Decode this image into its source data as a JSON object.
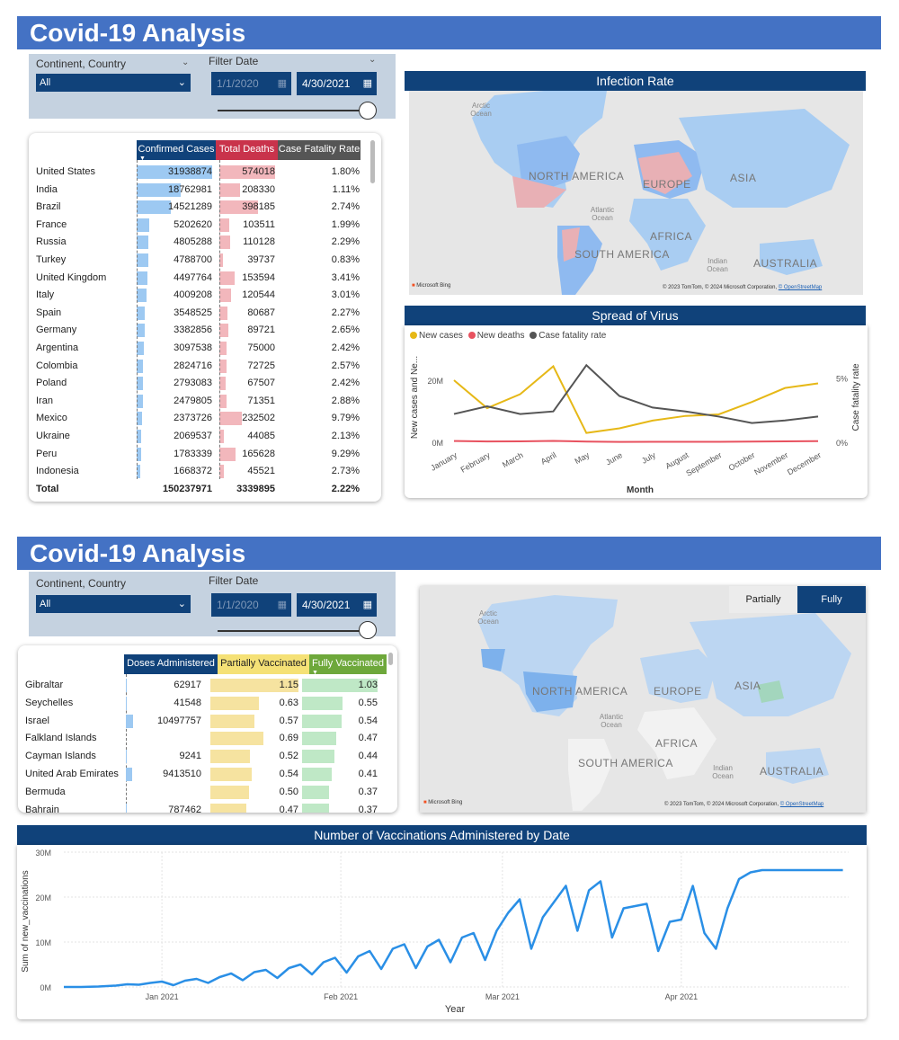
{
  "page1": {
    "title": "Covid-19 Analysis",
    "filters": {
      "continent_label": "Continent, Country",
      "continent_value": "All",
      "date_label": "Filter Date",
      "date_start": "1/1/2020",
      "date_end": "4/30/2021"
    },
    "table": {
      "headers": [
        "Confirmed Cases",
        "Total Deaths",
        "Case Fatality Rate"
      ],
      "rows": [
        {
          "country": "United States",
          "cases": "31938874",
          "deaths": "574018",
          "rate": "1.80%",
          "cases_n": 31938874,
          "deaths_n": 574018
        },
        {
          "country": "India",
          "cases": "18762981",
          "deaths": "208330",
          "rate": "1.11%",
          "cases_n": 18762981,
          "deaths_n": 208330
        },
        {
          "country": "Brazil",
          "cases": "14521289",
          "deaths": "398185",
          "rate": "2.74%",
          "cases_n": 14521289,
          "deaths_n": 398185
        },
        {
          "country": "France",
          "cases": "5202620",
          "deaths": "103511",
          "rate": "1.99%",
          "cases_n": 5202620,
          "deaths_n": 103511
        },
        {
          "country": "Russia",
          "cases": "4805288",
          "deaths": "110128",
          "rate": "2.29%",
          "cases_n": 4805288,
          "deaths_n": 110128
        },
        {
          "country": "Turkey",
          "cases": "4788700",
          "deaths": "39737",
          "rate": "0.83%",
          "cases_n": 4788700,
          "deaths_n": 39737
        },
        {
          "country": "United Kingdom",
          "cases": "4497764",
          "deaths": "153594",
          "rate": "3.41%",
          "cases_n": 4497764,
          "deaths_n": 153594
        },
        {
          "country": "Italy",
          "cases": "4009208",
          "deaths": "120544",
          "rate": "3.01%",
          "cases_n": 4009208,
          "deaths_n": 120544
        },
        {
          "country": "Spain",
          "cases": "3548525",
          "deaths": "80687",
          "rate": "2.27%",
          "cases_n": 3548525,
          "deaths_n": 80687
        },
        {
          "country": "Germany",
          "cases": "3382856",
          "deaths": "89721",
          "rate": "2.65%",
          "cases_n": 3382856,
          "deaths_n": 89721
        },
        {
          "country": "Argentina",
          "cases": "3097538",
          "deaths": "75000",
          "rate": "2.42%",
          "cases_n": 3097538,
          "deaths_n": 75000
        },
        {
          "country": "Colombia",
          "cases": "2824716",
          "deaths": "72725",
          "rate": "2.57%",
          "cases_n": 2824716,
          "deaths_n": 72725
        },
        {
          "country": "Poland",
          "cases": "2793083",
          "deaths": "67507",
          "rate": "2.42%",
          "cases_n": 2793083,
          "deaths_n": 67507
        },
        {
          "country": "Iran",
          "cases": "2479805",
          "deaths": "71351",
          "rate": "2.88%",
          "cases_n": 2479805,
          "deaths_n": 71351
        },
        {
          "country": "Mexico",
          "cases": "2373726",
          "deaths": "232502",
          "rate": "9.79%",
          "cases_n": 2373726,
          "deaths_n": 232502
        },
        {
          "country": "Ukraine",
          "cases": "2069537",
          "deaths": "44085",
          "rate": "2.13%",
          "cases_n": 2069537,
          "deaths_n": 44085
        },
        {
          "country": "Peru",
          "cases": "1783339",
          "deaths": "165628",
          "rate": "9.29%",
          "cases_n": 1783339,
          "deaths_n": 165628
        },
        {
          "country": "Indonesia",
          "cases": "1668372",
          "deaths": "45521",
          "rate": "2.73%",
          "cases_n": 1668372,
          "deaths_n": 45521
        }
      ],
      "total": {
        "label": "Total",
        "cases": "150237971",
        "deaths": "3339895",
        "rate": "2.22%"
      }
    },
    "infection_map": {
      "title": "Infection Rate",
      "labels": {
        "north_america": "NORTH AMERICA",
        "south_america": "SOUTH AMERICA",
        "europe": "EUROPE",
        "asia": "ASIA",
        "africa": "AFRICA",
        "australia": "AUSTRALIA"
      },
      "oceans": {
        "arctic": "Arctic Ocean",
        "atlantic": "Atlantic Ocean",
        "indian": "Indian Ocean"
      },
      "bing": "Microsoft Bing",
      "attribution": "© 2023 TomTom, © 2024 Microsoft Corporation,",
      "osm": "© OpenStreetMap"
    },
    "spread_chart": {
      "title": "Spread of Virus"
    }
  },
  "page2": {
    "title": "Covid-19 Analysis",
    "filters": {
      "continent_label": "Continent, Country",
      "continent_value": "All",
      "date_label": "Filter Date",
      "date_start": "1/1/2020",
      "date_end": "4/30/2021"
    },
    "table": {
      "headers": [
        "Doses Administered",
        "Partially Vaccinated",
        "Fully Vaccinated"
      ],
      "rows": [
        {
          "country": "Gibraltar",
          "doses": "62917",
          "partial": "1.15",
          "full": "1.03",
          "doses_n": 62917,
          "partial_n": 1.15,
          "full_n": 1.03
        },
        {
          "country": "Seychelles",
          "doses": "41548",
          "partial": "0.63",
          "full": "0.55",
          "doses_n": 41548,
          "partial_n": 0.63,
          "full_n": 0.55
        },
        {
          "country": "Israel",
          "doses": "10497757",
          "partial": "0.57",
          "full": "0.54",
          "doses_n": 10497757,
          "partial_n": 0.57,
          "full_n": 0.54
        },
        {
          "country": "Falkland Islands",
          "doses": "",
          "partial": "0.69",
          "full": "0.47",
          "doses_n": 0,
          "partial_n": 0.69,
          "full_n": 0.47
        },
        {
          "country": "Cayman Islands",
          "doses": "9241",
          "partial": "0.52",
          "full": "0.44",
          "doses_n": 9241,
          "partial_n": 0.52,
          "full_n": 0.44
        },
        {
          "country": "United Arab Emirates",
          "doses": "9413510",
          "partial": "0.54",
          "full": "0.41",
          "doses_n": 9413510,
          "partial_n": 0.54,
          "full_n": 0.41
        },
        {
          "country": "Bermuda",
          "doses": "",
          "partial": "0.50",
          "full": "0.37",
          "doses_n": 0,
          "partial_n": 0.5,
          "full_n": 0.37
        },
        {
          "country": "Bahrain",
          "doses": "787462",
          "partial": "0.47",
          "full": "0.37",
          "doses_n": 787462,
          "partial_n": 0.47,
          "full_n": 0.37
        }
      ]
    },
    "vacc_map": {
      "toggle_partial": "Partially",
      "toggle_full": "Fully",
      "labels": {
        "north_america": "NORTH AMERICA",
        "south_america": "SOUTH AMERICA",
        "europe": "EUROPE",
        "asia": "ASIA",
        "africa": "AFRICA",
        "australia": "AUSTRALIA"
      },
      "oceans": {
        "arctic": "Arctic Ocean",
        "atlantic": "Atlantic Ocean",
        "indian": "Indian Ocean"
      },
      "bing": "Microsoft Bing",
      "attribution": "© 2023 TomTom, © 2024 Microsoft Corporation,",
      "osm": "© OpenStreetMap"
    },
    "vacc_chart": {
      "title": "Number of Vaccinations Administered by Date"
    }
  },
  "colors": {
    "banner": "#4472c4",
    "navy": "#10427a",
    "cases": "#9dc9f2",
    "deaths": "#f2b7bc",
    "deaths_header": "#c9334b",
    "rate_header": "#555555",
    "partial_header": "#f5e176",
    "full_header": "#6ea83b"
  },
  "chart_data": [
    {
      "type": "line",
      "title": "Spread of Virus",
      "x": [
        "January",
        "February",
        "March",
        "April",
        "May",
        "June",
        "July",
        "August",
        "September",
        "October",
        "November",
        "December"
      ],
      "xlabel": "Month",
      "ylabel": "New cases and Ne...",
      "y2label": "Case fatality rate",
      "y_ticks": [
        "0M",
        "20M"
      ],
      "y2_ticks": [
        "0%",
        "5%"
      ],
      "ylim": [
        0,
        29000000
      ],
      "y2lim": [
        0,
        7
      ],
      "legend": "top-left",
      "series": [
        {
          "name": "New cases",
          "color": "#e6b817",
          "axis": "left",
          "values": [
            20000000,
            11000000,
            15500000,
            24500000,
            3000000,
            4500000,
            7000000,
            8500000,
            9000000,
            13000000,
            17500000,
            19000000
          ]
        },
        {
          "name": "New deaths",
          "color": "#e8525f",
          "axis": "left",
          "values": [
            400000,
            250000,
            300000,
            450000,
            200000,
            120000,
            150000,
            150000,
            140000,
            200000,
            300000,
            350000
          ]
        },
        {
          "name": "Case fatality rate",
          "color": "#555555",
          "axis": "right",
          "values": [
            2.2,
            2.8,
            2.2,
            2.4,
            6.0,
            3.6,
            2.7,
            2.4,
            2.0,
            1.5,
            1.7,
            2.0
          ]
        }
      ]
    },
    {
      "type": "line",
      "title": "Number of Vaccinations Administered by Date",
      "xlabel": "Year",
      "ylabel": "Sum of new_vaccinations",
      "x_ticks": [
        "Jan 2021",
        "Feb 2021",
        "Mar 2021",
        "Apr 2021"
      ],
      "y_ticks": [
        "0M",
        "10M",
        "20M",
        "30M"
      ],
      "ylim": [
        0,
        30000000
      ],
      "x_range": [
        "2020-12-15",
        "2021-04-30"
      ],
      "grid": true,
      "series": [
        {
          "name": "",
          "color": "#2a8fe6",
          "x": [
            "2020-12-15",
            "2020-12-18",
            "2020-12-21",
            "2020-12-24",
            "2020-12-26",
            "2020-12-28",
            "2020-12-30",
            "2021-01-01",
            "2021-01-03",
            "2021-01-05",
            "2021-01-07",
            "2021-01-09",
            "2021-01-11",
            "2021-01-13",
            "2021-01-15",
            "2021-01-17",
            "2021-01-19",
            "2021-01-21",
            "2021-01-23",
            "2021-01-25",
            "2021-01-27",
            "2021-01-29",
            "2021-01-31",
            "2021-02-02",
            "2021-02-04",
            "2021-02-06",
            "2021-02-08",
            "2021-02-10",
            "2021-02-12",
            "2021-02-14",
            "2021-02-16",
            "2021-02-18",
            "2021-02-20",
            "2021-02-22",
            "2021-02-24",
            "2021-02-26",
            "2021-02-28",
            "2021-03-02",
            "2021-03-04",
            "2021-03-06",
            "2021-03-08",
            "2021-03-10",
            "2021-03-12",
            "2021-03-14",
            "2021-03-16",
            "2021-03-18",
            "2021-03-20",
            "2021-03-22",
            "2021-03-24",
            "2021-03-26",
            "2021-03-28",
            "2021-03-30",
            "2021-04-01",
            "2021-04-03",
            "2021-04-05",
            "2021-04-07",
            "2021-04-09",
            "2021-04-11",
            "2021-04-13",
            "2021-04-15",
            "2021-04-17",
            "2021-04-19",
            "2021-04-21",
            "2021-04-23",
            "2021-04-25",
            "2021-04-27",
            "2021-04-29"
          ],
          "values": [
            0,
            0,
            100000,
            300000,
            600000,
            500000,
            900000,
            1200000,
            400000,
            1400000,
            1800000,
            900000,
            2200000,
            3000000,
            1500000,
            3300000,
            3800000,
            2000000,
            4200000,
            5000000,
            2800000,
            5500000,
            6500000,
            3200000,
            6800000,
            8000000,
            4000000,
            8500000,
            9500000,
            4200000,
            9000000,
            10500000,
            5500000,
            11000000,
            12000000,
            6000000,
            12500000,
            16500000,
            19500000,
            8500000,
            15500000,
            19000000,
            22500000,
            12500000,
            21500000,
            23500000,
            11000000,
            17500000,
            18000000,
            18500000,
            8000000,
            14500000,
            15000000,
            22500000,
            12000000,
            8500000,
            17500000,
            24000000,
            25500000,
            26000000,
            26000000,
            26000000,
            26000000,
            26000000,
            26000000,
            26000000,
            26000000
          ]
        }
      ]
    }
  ]
}
